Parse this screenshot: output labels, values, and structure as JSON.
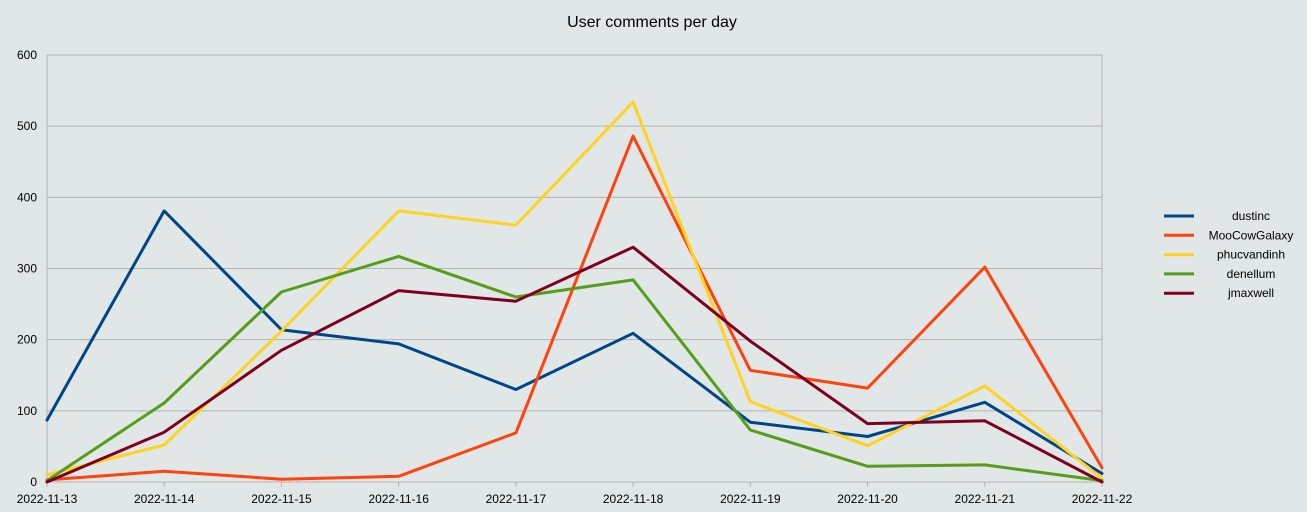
{
  "chart_data": {
    "type": "line",
    "title": "User comments per day",
    "xlabel": "",
    "ylabel": "",
    "x": [
      "2022-11-13",
      "2022-11-14",
      "2022-11-15",
      "2022-11-16",
      "2022-11-17",
      "2022-11-18",
      "2022-11-19",
      "2022-11-20",
      "2022-11-21",
      "2022-11-22"
    ],
    "ylim": [
      0,
      600
    ],
    "yticks": [
      "0",
      "100",
      "200",
      "300",
      "400",
      "500",
      "600"
    ],
    "grid": true,
    "legend_position": "right",
    "series": [
      {
        "name": "dustinc",
        "color": "#004586",
        "values": [
          87,
          381,
          214,
          194,
          130,
          209,
          84,
          64,
          112,
          12
        ]
      },
      {
        "name": "MooCowGalaxy",
        "color": "#ff420e",
        "values": [
          3,
          15,
          4,
          8,
          69,
          486,
          157,
          132,
          302,
          20
        ]
      },
      {
        "name": "phucvandinh",
        "color": "#ffd320",
        "values": [
          10,
          52,
          212,
          381,
          361,
          534,
          113,
          51,
          135,
          5
        ]
      },
      {
        "name": "denellum",
        "color": "#579d1c",
        "values": [
          2,
          111,
          267,
          317,
          260,
          284,
          73,
          22,
          24,
          2
        ]
      },
      {
        "name": "jmaxwell",
        "color": "#7e0021",
        "values": [
          0,
          70,
          185,
          269,
          254,
          330,
          198,
          82,
          86,
          0
        ]
      }
    ]
  }
}
